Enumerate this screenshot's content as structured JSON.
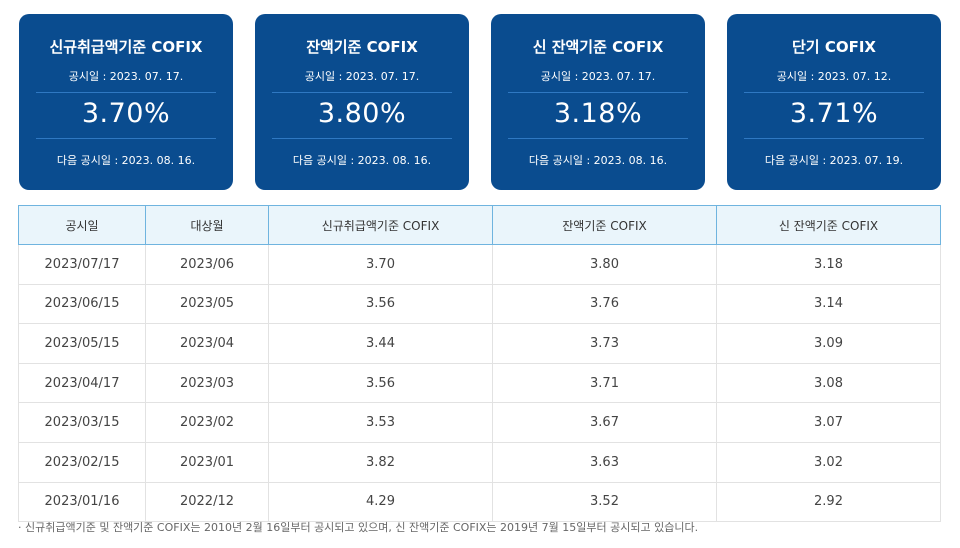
{
  "cards": [
    {
      "title": "신규취급액기준 COFIX",
      "published": "공시일 : 2023. 07. 17.",
      "rate": "3.70%",
      "next": "다음 공시일 : 2023. 08. 16."
    },
    {
      "title": "잔액기준 COFIX",
      "published": "공시일 : 2023. 07. 17.",
      "rate": "3.80%",
      "next": "다음 공시일 : 2023. 08. 16."
    },
    {
      "title": "신 잔액기준 COFIX",
      "published": "공시일 : 2023. 07. 17.",
      "rate": "3.18%",
      "next": "다음 공시일 : 2023. 08. 16."
    },
    {
      "title": "단기 COFIX",
      "published": "공시일 : 2023. 07. 12.",
      "rate": "3.71%",
      "next": "다음 공시일 : 2023. 07. 19."
    }
  ],
  "table": {
    "headers": [
      "공시일",
      "대상월",
      "신규취급액기준 COFIX",
      "잔액기준 COFIX",
      "신 잔액기준 COFIX"
    ],
    "rows": [
      [
        "2023/07/17",
        "2023/06",
        "3.70",
        "3.80",
        "3.18"
      ],
      [
        "2023/06/15",
        "2023/05",
        "3.56",
        "3.76",
        "3.14"
      ],
      [
        "2023/05/15",
        "2023/04",
        "3.44",
        "3.73",
        "3.09"
      ],
      [
        "2023/04/17",
        "2023/03",
        "3.56",
        "3.71",
        "3.08"
      ],
      [
        "2023/03/15",
        "2023/02",
        "3.53",
        "3.67",
        "3.07"
      ],
      [
        "2023/02/15",
        "2023/01",
        "3.82",
        "3.63",
        "3.02"
      ],
      [
        "2023/01/16",
        "2022/12",
        "4.29",
        "3.52",
        "2.92"
      ]
    ]
  },
  "note": "· 신규취급액기준 및 잔액기준 COFIX는 2010년 2월 16일부터 공시되고 있으며, 신 잔액기준 COFIX는 2019년 7월 15일부터 공시되고 있습니다.",
  "colors": {
    "card_bg": "#0a4c8f",
    "header_bg": "#eaf5fb",
    "header_border": "#6fb4df"
  }
}
